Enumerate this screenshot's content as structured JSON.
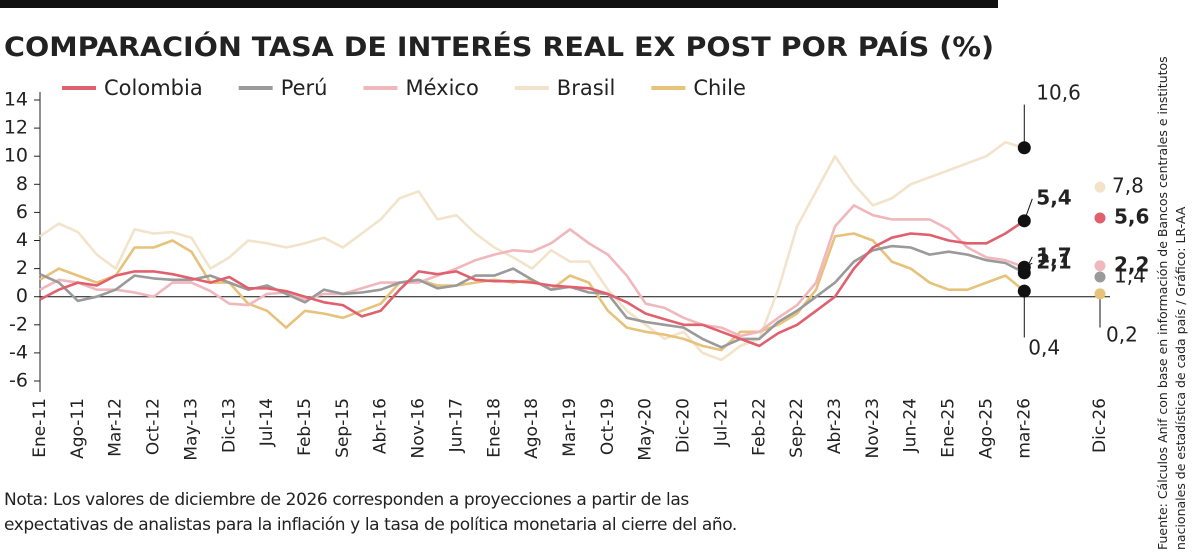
{
  "chart_data": {
    "type": "line",
    "title": "COMPARACIÓN TASA DE INTERÉS REAL EX POST POR PAÍS (%)",
    "note": "Nota: Los valores de diciembre de 2026 corresponden a proyecciones a partir de las expectativas de analistas para la inflación y la tasa de política monetaria al cierre del año.",
    "source": "Fuente: Cálculos Anif con base en información de Bancos centrales e institutos nacionales de estadística de cada país / Gráfico: LR-AA",
    "categories": [
      "Ene-11",
      null,
      "Ago-11",
      null,
      "Mar-12",
      null,
      "Oct-12",
      null,
      "May-13",
      null,
      "Dic-13",
      null,
      "Jul-14",
      null,
      "Feb-15",
      null,
      "Sep-15",
      null,
      "Abr-16",
      null,
      "Nov-16",
      null,
      "Jun-17",
      null,
      "Ene-18",
      null,
      "Ago-18",
      null,
      "Mar-19",
      null,
      "Oct-19",
      null,
      "May-20",
      null,
      "Dic-20",
      null,
      "Jul-21",
      null,
      "Feb-22",
      null,
      "Sep-22",
      null,
      "Abr-23",
      null,
      "Nov-23",
      null,
      "Jun-24",
      null,
      "Ene-25",
      null,
      "Ago-25",
      null,
      "mar-26",
      null,
      null,
      null,
      "Dic-26"
    ],
    "series": [
      {
        "name": "Colombia",
        "color": "#e0606e",
        "values": [
          -0.2,
          0.5,
          1.0,
          0.8,
          1.5,
          1.8,
          1.8,
          1.6,
          1.3,
          1.0,
          1.4,
          0.6,
          0.6,
          0.4,
          0,
          -0.4,
          -0.6,
          -1.4,
          -1.0,
          0.5,
          1.8,
          1.6,
          1.8,
          1.2,
          1.1,
          1.1,
          1.0,
          0.8,
          0.7,
          0.6,
          0.2,
          -0.4,
          -1.2,
          -1.6,
          -2.0,
          -2.0,
          -2.5,
          -3.0,
          -3.5,
          -2.6,
          -2.0,
          -1.0,
          0,
          2.0,
          3.5,
          4.2,
          4.5,
          4.4,
          4.0,
          3.8,
          3.8,
          4.5,
          5.4,
          null,
          null,
          null,
          5.6
        ],
        "value_labels": [
          null,
          null,
          null,
          null,
          null,
          null,
          null,
          null,
          null,
          null,
          null,
          null,
          null,
          null,
          null,
          null,
          null,
          null,
          null,
          null,
          null,
          null,
          null,
          null,
          null,
          null,
          null,
          null,
          null,
          null,
          null,
          null,
          null,
          null,
          null,
          null,
          null,
          null,
          null,
          null,
          null,
          null,
          null,
          null,
          null,
          null,
          null,
          null,
          null,
          null,
          null,
          null,
          "5,4",
          null,
          null,
          null,
          "5,6"
        ]
      },
      {
        "name": "Perú",
        "color": "#9a9a9a",
        "values": [
          1.6,
          1.0,
          -0.3,
          0,
          0.5,
          1.5,
          1.3,
          1.2,
          1.2,
          1.5,
          1.0,
          0.5,
          0.8,
          0.2,
          -0.4,
          0.5,
          0.2,
          0.3,
          0.5,
          1.0,
          1.2,
          0.6,
          0.8,
          1.5,
          1.5,
          2.0,
          1.2,
          0.5,
          0.7,
          0.3,
          0.2,
          -1.5,
          -1.8,
          -2.0,
          -2.2,
          -3.0,
          -3.6,
          -3.0,
          -3.0,
          -1.8,
          -1.0,
          0,
          1.0,
          2.5,
          3.3,
          3.6,
          3.5,
          3.0,
          3.2,
          3.0,
          2.6,
          2.4,
          1.7,
          null,
          null,
          null,
          1.4
        ],
        "value_labels": [
          null,
          null,
          null,
          null,
          null,
          null,
          null,
          null,
          null,
          null,
          null,
          null,
          null,
          null,
          null,
          null,
          null,
          null,
          null,
          null,
          null,
          null,
          null,
          null,
          null,
          null,
          null,
          null,
          null,
          null,
          null,
          null,
          null,
          null,
          null,
          null,
          null,
          null,
          null,
          null,
          null,
          null,
          null,
          null,
          null,
          null,
          null,
          null,
          null,
          null,
          null,
          null,
          "1,7",
          null,
          null,
          null,
          "1,4"
        ]
      },
      {
        "name": "México",
        "color": "#f0b8bc",
        "values": [
          0.5,
          1.2,
          1.0,
          0.5,
          0.5,
          0.3,
          0,
          1.0,
          1.0,
          0.4,
          -0.5,
          -0.6,
          0.2,
          0.3,
          -0.2,
          0.2,
          0.2,
          0.6,
          1.0,
          1.0,
          1.0,
          1.5,
          2.0,
          2.6,
          3.0,
          3.3,
          3.2,
          3.8,
          4.8,
          3.8,
          3.0,
          1.5,
          -0.5,
          -0.8,
          -1.5,
          -2.0,
          -2.2,
          -2.8,
          -2.5,
          -1.5,
          -0.6,
          1.0,
          5.0,
          6.5,
          5.8,
          5.5,
          5.5,
          5.5,
          4.8,
          3.5,
          2.8,
          2.6,
          2.1,
          null,
          null,
          null,
          2.2
        ],
        "value_labels": [
          null,
          null,
          null,
          null,
          null,
          null,
          null,
          null,
          null,
          null,
          null,
          null,
          null,
          null,
          null,
          null,
          null,
          null,
          null,
          null,
          null,
          null,
          null,
          null,
          null,
          null,
          null,
          null,
          null,
          null,
          null,
          null,
          null,
          null,
          null,
          null,
          null,
          null,
          null,
          null,
          null,
          null,
          null,
          null,
          null,
          null,
          null,
          null,
          null,
          null,
          null,
          null,
          "2,1",
          null,
          null,
          null,
          "2,2"
        ]
      },
      {
        "name": "Brasil",
        "color": "#f3e3cb",
        "values": [
          4.3,
          5.2,
          4.6,
          3.0,
          2.0,
          4.8,
          4.5,
          4.6,
          4.2,
          2.0,
          2.8,
          4.0,
          3.8,
          3.5,
          3.8,
          4.2,
          3.5,
          4.5,
          5.5,
          7.0,
          7.5,
          5.5,
          5.8,
          4.5,
          3.5,
          2.8,
          2.0,
          3.3,
          2.5,
          2.5,
          0.5,
          -1.0,
          -2.0,
          -3.0,
          -2.5,
          -4.0,
          -4.5,
          -3.5,
          -3.0,
          0.5,
          5.0,
          7.5,
          10.0,
          8.0,
          6.5,
          7.0,
          8.0,
          8.5,
          9.0,
          9.5,
          10.0,
          11.0,
          10.6,
          null,
          null,
          null,
          7.8
        ],
        "value_labels": [
          null,
          null,
          null,
          null,
          null,
          null,
          null,
          null,
          null,
          null,
          null,
          null,
          null,
          null,
          null,
          null,
          null,
          null,
          null,
          null,
          null,
          null,
          null,
          null,
          null,
          null,
          null,
          null,
          null,
          null,
          null,
          null,
          null,
          null,
          null,
          null,
          null,
          null,
          null,
          null,
          null,
          null,
          null,
          null,
          null,
          null,
          null,
          null,
          null,
          null,
          null,
          null,
          "10,6",
          null,
          null,
          null,
          "7,8"
        ]
      },
      {
        "name": "Chile",
        "color": "#e6c27a",
        "values": [
          1.2,
          2.0,
          1.5,
          1.0,
          1.5,
          3.5,
          3.5,
          4.0,
          3.2,
          1.0,
          1.0,
          -0.5,
          -1.0,
          -2.2,
          -1.0,
          -1.2,
          -1.5,
          -1.0,
          -0.5,
          1.0,
          1.2,
          0.8,
          0.8,
          1.0,
          1.2,
          1.0,
          1.2,
          0.5,
          1.5,
          1.0,
          -1.0,
          -2.2,
          -2.5,
          -2.7,
          -3.0,
          -3.5,
          -3.8,
          -2.5,
          -2.5,
          -2.0,
          -1.2,
          0.5,
          4.3,
          4.5,
          4.0,
          2.5,
          2.0,
          1.0,
          0.5,
          0.5,
          1.0,
          1.5,
          0.4,
          null,
          null,
          null,
          0.2
        ],
        "value_labels": [
          null,
          null,
          null,
          null,
          null,
          null,
          null,
          null,
          null,
          null,
          null,
          null,
          null,
          null,
          null,
          null,
          null,
          null,
          null,
          null,
          null,
          null,
          null,
          null,
          null,
          null,
          null,
          null,
          null,
          null,
          null,
          null,
          null,
          null,
          null,
          null,
          null,
          null,
          null,
          null,
          null,
          null,
          null,
          null,
          null,
          null,
          null,
          null,
          null,
          null,
          null,
          null,
          "0,4",
          null,
          null,
          null,
          "0,2"
        ]
      }
    ],
    "ylim": [
      -6,
      14
    ],
    "yticks": [
      -6,
      -4,
      -2,
      0,
      2,
      4,
      6,
      8,
      10,
      12,
      14
    ],
    "grid": false
  }
}
